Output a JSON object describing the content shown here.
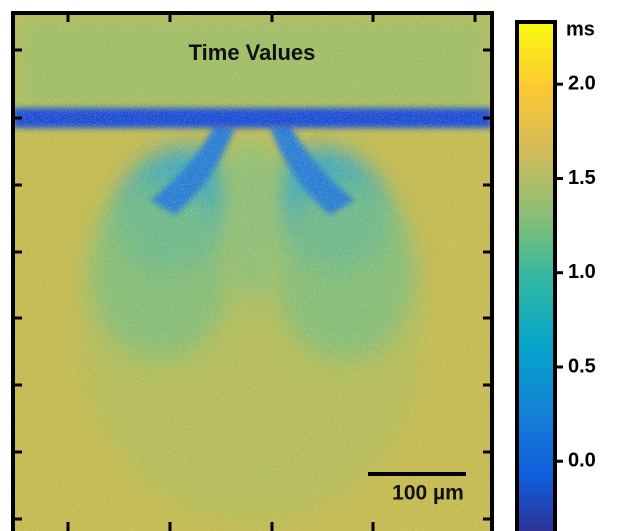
{
  "chart_data": {
    "type": "heatmap",
    "title": "Time Values",
    "scale_bar_label": "100 µm",
    "colorbar_label": "ms",
    "clim": [
      -0.37,
      2.33
    ],
    "colorbar_ticks": [
      0.0,
      0.5,
      1.0,
      1.5,
      2.0
    ],
    "colormap": [
      "#352a87",
      "#0f5cdd",
      "#1481d6",
      "#06a4ca",
      "#2eb7a4",
      "#87bf77",
      "#d1bb59",
      "#fec832",
      "#f9fb0e"
    ]
  }
}
